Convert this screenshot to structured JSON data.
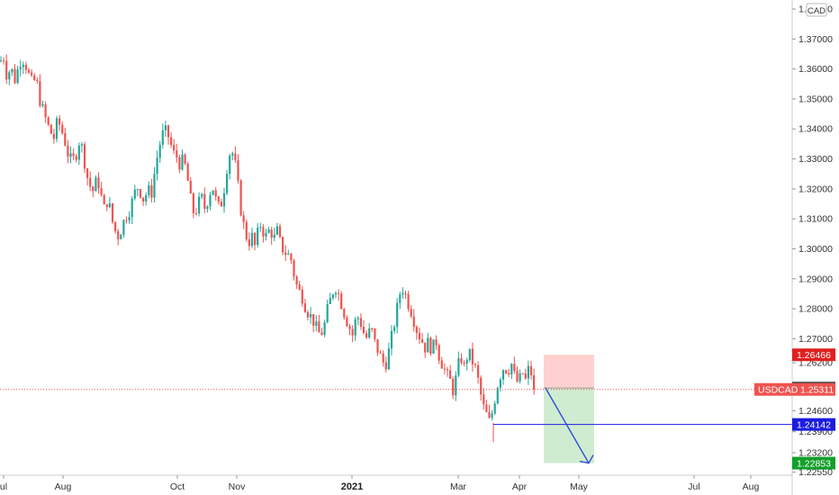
{
  "chart_data": {
    "type": "candlestick",
    "symbol": "USDCAD",
    "currency": "CAD",
    "y_ticks": [
      "1.38000",
      "1.37000",
      "1.36000",
      "1.35000",
      "1.34000",
      "1.33000",
      "1.32000",
      "1.31000",
      "1.30000",
      "1.29000",
      "1.28000",
      "1.27000",
      "1.26200",
      "1.24600",
      "1.23900",
      "1.23200",
      "1.22550"
    ],
    "y_tick_values": [
      1.38,
      1.37,
      1.36,
      1.35,
      1.34,
      1.33,
      1.32,
      1.31,
      1.3,
      1.29,
      1.28,
      1.27,
      1.262,
      1.246,
      1.239,
      1.232,
      1.2255
    ],
    "x_ticks": [
      "ul",
      "Aug",
      "Oct",
      "Nov",
      "2021",
      "Mar",
      "Apr",
      "May",
      "Jul",
      "Aug"
    ],
    "ylim": [
      1.2245,
      1.383
    ],
    "last_price": {
      "label": "USDCAD",
      "value": "1.25311",
      "num": 1.25311
    },
    "price_tags": [
      {
        "value": "1.26466",
        "num": 1.26466,
        "color": "#e02020"
      },
      {
        "value": "1.25357",
        "num": 1.25357,
        "color": "#4a4a4a"
      },
      {
        "value": "1.24142",
        "num": 1.24142,
        "color": "#1c1ce0"
      },
      {
        "value": "1.22853",
        "num": 1.22853,
        "color": "#12a02a"
      }
    ],
    "position": {
      "entry": 1.25357,
      "stop": 1.26466,
      "target": 1.22853
    },
    "horizontal_line": 1.24142,
    "up_color": "#26a69a",
    "down_color": "#ef5350",
    "close_path": [
      [
        0,
        1.3625
      ],
      [
        4,
        1.364
      ],
      [
        8,
        1.357
      ],
      [
        12,
        1.361
      ],
      [
        16,
        1.356
      ],
      [
        20,
        1.36
      ],
      [
        24,
        1.364
      ],
      [
        28,
        1.362
      ],
      [
        32,
        1.358
      ],
      [
        36,
        1.355
      ],
      [
        40,
        1.357
      ],
      [
        44,
        1.35
      ],
      [
        48,
        1.346
      ],
      [
        52,
        1.342
      ],
      [
        56,
        1.339
      ],
      [
        60,
        1.337
      ],
      [
        64,
        1.343
      ],
      [
        68,
        1.34
      ],
      [
        72,
        1.336
      ],
      [
        76,
        1.331
      ],
      [
        80,
        1.329
      ],
      [
        84,
        1.331
      ],
      [
        88,
        1.336
      ],
      [
        92,
        1.333
      ],
      [
        96,
        1.325
      ],
      [
        100,
        1.321
      ],
      [
        104,
        1.319
      ],
      [
        108,
        1.324
      ],
      [
        112,
        1.318
      ],
      [
        116,
        1.313
      ],
      [
        120,
        1.317
      ],
      [
        124,
        1.31
      ],
      [
        128,
        1.306
      ],
      [
        132,
        1.304
      ],
      [
        136,
        1.308
      ],
      [
        140,
        1.311
      ],
      [
        144,
        1.313
      ],
      [
        148,
        1.317
      ],
      [
        152,
        1.321
      ],
      [
        156,
        1.319
      ],
      [
        160,
        1.316
      ],
      [
        164,
        1.32
      ],
      [
        168,
        1.318
      ],
      [
        172,
        1.326
      ],
      [
        176,
        1.333
      ],
      [
        180,
        1.338
      ],
      [
        184,
        1.339
      ],
      [
        188,
        1.337
      ],
      [
        192,
        1.332
      ],
      [
        196,
        1.331
      ],
      [
        200,
        1.328
      ],
      [
        204,
        1.33
      ],
      [
        208,
        1.324
      ],
      [
        212,
        1.316
      ],
      [
        216,
        1.311
      ],
      [
        220,
        1.315
      ],
      [
        224,
        1.317
      ],
      [
        228,
        1.313
      ],
      [
        232,
        1.318
      ],
      [
        236,
        1.321
      ],
      [
        240,
        1.316
      ],
      [
        244,
        1.313
      ],
      [
        248,
        1.318
      ],
      [
        252,
        1.327
      ],
      [
        256,
        1.333
      ],
      [
        260,
        1.331
      ],
      [
        264,
        1.322
      ],
      [
        268,
        1.312
      ],
      [
        272,
        1.306
      ],
      [
        276,
        1.302
      ],
      [
        280,
        1.304
      ],
      [
        284,
        1.3
      ],
      [
        288,
        1.309
      ],
      [
        292,
        1.306
      ],
      [
        296,
        1.304
      ],
      [
        300,
        1.307
      ],
      [
        304,
        1.303
      ],
      [
        308,
        1.306
      ],
      [
        312,
        1.301
      ],
      [
        316,
        1.299
      ],
      [
        320,
        1.298
      ],
      [
        324,
        1.296
      ],
      [
        328,
        1.289
      ],
      [
        332,
        1.286
      ],
      [
        336,
        1.284
      ],
      [
        340,
        1.28
      ],
      [
        344,
        1.278
      ],
      [
        348,
        1.276
      ],
      [
        352,
        1.273
      ],
      [
        356,
        1.271
      ],
      [
        360,
        1.274
      ],
      [
        364,
        1.28
      ],
      [
        368,
        1.284
      ],
      [
        372,
        1.288
      ],
      [
        376,
        1.285
      ],
      [
        380,
        1.281
      ],
      [
        384,
        1.277
      ],
      [
        388,
        1.274
      ],
      [
        392,
        1.271
      ],
      [
        396,
        1.278
      ],
      [
        400,
        1.276
      ],
      [
        404,
        1.272
      ],
      [
        408,
        1.27
      ],
      [
        412,
        1.274
      ],
      [
        416,
        1.269
      ],
      [
        420,
        1.266
      ],
      [
        424,
        1.263
      ],
      [
        428,
        1.261
      ],
      [
        432,
        1.266
      ],
      [
        436,
        1.272
      ],
      [
        440,
        1.278
      ],
      [
        444,
        1.285
      ],
      [
        448,
        1.287
      ],
      [
        452,
        1.283
      ],
      [
        456,
        1.28
      ],
      [
        460,
        1.276
      ],
      [
        464,
        1.272
      ],
      [
        468,
        1.27
      ],
      [
        472,
        1.267
      ],
      [
        476,
        1.269
      ],
      [
        480,
        1.266
      ],
      [
        484,
        1.27
      ],
      [
        488,
        1.264
      ],
      [
        492,
        1.261
      ],
      [
        496,
        1.258
      ],
      [
        500,
        1.256
      ],
      [
        504,
        1.252
      ],
      [
        508,
        1.26
      ],
      [
        512,
        1.264
      ],
      [
        516,
        1.26
      ],
      [
        520,
        1.266
      ],
      [
        524,
        1.263
      ],
      [
        528,
        1.26
      ],
      [
        532,
        1.255
      ],
      [
        536,
        1.248
      ],
      [
        540,
        1.245
      ],
      [
        544,
        1.242
      ],
      [
        548,
        1.247
      ],
      [
        552,
        1.254
      ],
      [
        556,
        1.258
      ],
      [
        560,
        1.261
      ],
      [
        564,
        1.259
      ],
      [
        568,
        1.262
      ],
      [
        572,
        1.257
      ],
      [
        576,
        1.255
      ],
      [
        580,
        1.259
      ],
      [
        584,
        1.256
      ],
      [
        588,
        1.261
      ],
      [
        592,
        1.256
      ],
      [
        594,
        1.2531
      ]
    ]
  }
}
